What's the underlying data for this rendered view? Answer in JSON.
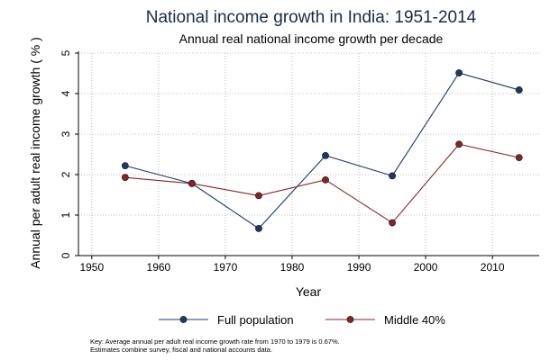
{
  "chart_data": {
    "type": "line",
    "title": "National income growth in India: 1951-2014",
    "subtitle": "Annual real national income growth per decade",
    "xlabel": "Year",
    "ylabel": "Annual per adult real income growth ( % )",
    "xlim": [
      1948,
      2017
    ],
    "ylim": [
      0,
      5
    ],
    "xticks": [
      1950,
      1960,
      1970,
      1980,
      1990,
      2000,
      2010
    ],
    "yticks": [
      0,
      1,
      2,
      3,
      4,
      5
    ],
    "grid": true,
    "legend_position": "bottom",
    "series": [
      {
        "name": "Full population",
        "color": "#1b3a6b",
        "x": [
          1955,
          1965,
          1975,
          1985,
          1995,
          2005,
          2014
        ],
        "y": [
          2.22,
          1.78,
          0.67,
          2.47,
          1.97,
          4.51,
          4.09
        ]
      },
      {
        "name": "Middle 40%",
        "color": "#8b2323",
        "x": [
          1955,
          1965,
          1975,
          1985,
          1995,
          2005,
          2014
        ],
        "y": [
          1.93,
          1.78,
          1.48,
          1.87,
          0.81,
          2.75,
          2.42
        ]
      }
    ]
  },
  "notes": [
    "Key: Average annual per adult real income growth rate from 1970 to 1979 is 0.67%.",
    "Estimates combine survey, fiscal and national accounts data."
  ]
}
